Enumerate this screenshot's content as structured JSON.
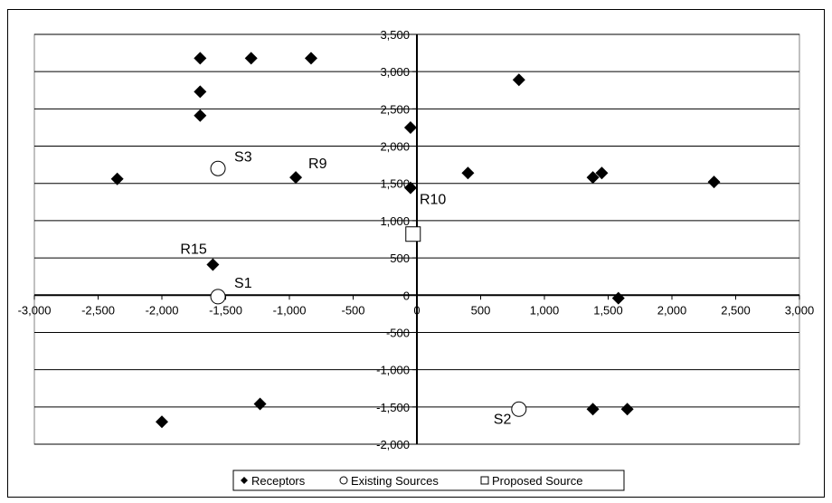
{
  "chart_data": {
    "type": "scatter",
    "title": "",
    "xlabel": "",
    "ylabel": "",
    "xlim": [
      -3000,
      3000
    ],
    "ylim": [
      -2000,
      3500
    ],
    "x_ticks": [
      "-3,000",
      "-2,500",
      "-2,000",
      "-1,500",
      "-1,000",
      "-500",
      "0",
      "500",
      "1,000",
      "1,500",
      "2,000",
      "2,500",
      "3,000"
    ],
    "y_ticks": [
      "3,500",
      "3,000",
      "2,500",
      "2,000",
      "1,500",
      "1,000",
      "500",
      "0",
      "-500",
      "-1,000",
      "-1,500",
      "-2,000"
    ],
    "x_tick_values": [
      -3000,
      -2500,
      -2000,
      -1500,
      -1000,
      -500,
      0,
      500,
      1000,
      1500,
      2000,
      2500,
      3000
    ],
    "y_tick_values": [
      3500,
      3000,
      2500,
      2000,
      1500,
      1000,
      500,
      0,
      -500,
      -1000,
      -1500,
      -2000
    ],
    "grid": "horizontal",
    "legend_position": "bottom",
    "series": [
      {
        "name": "Receptors",
        "marker": "diamond",
        "color": "#000000",
        "points": [
          {
            "x": -2350,
            "y": 1560
          },
          {
            "x": -2000,
            "y": -1700
          },
          {
            "x": -1700,
            "y": 3180
          },
          {
            "x": -1700,
            "y": 2730
          },
          {
            "x": -1700,
            "y": 2410
          },
          {
            "x": -1600,
            "y": 410,
            "label": "R15"
          },
          {
            "x": -1300,
            "y": 3180
          },
          {
            "x": -1230,
            "y": -1460
          },
          {
            "x": -950,
            "y": 1580,
            "label": "R9"
          },
          {
            "x": -830,
            "y": 3180
          },
          {
            "x": -50,
            "y": 2250
          },
          {
            "x": -50,
            "y": 1440,
            "label": "R10"
          },
          {
            "x": 400,
            "y": 1640
          },
          {
            "x": 800,
            "y": 2890
          },
          {
            "x": 1380,
            "y": 1580
          },
          {
            "x": 1450,
            "y": 1640
          },
          {
            "x": 1580,
            "y": -40
          },
          {
            "x": 1380,
            "y": -1530
          },
          {
            "x": 1650,
            "y": -1530
          },
          {
            "x": 2330,
            "y": 1520
          }
        ]
      },
      {
        "name": "Existing Sources",
        "marker": "circle",
        "color": "#000000",
        "points": [
          {
            "x": -1560,
            "y": 1700,
            "label": "S3"
          },
          {
            "x": -1560,
            "y": -20,
            "label": "S1"
          },
          {
            "x": 800,
            "y": -1530,
            "label": "S2"
          }
        ]
      },
      {
        "name": "Proposed Source",
        "marker": "square",
        "color": "#000000",
        "points": [
          {
            "x": -30,
            "y": 820
          }
        ]
      }
    ]
  }
}
